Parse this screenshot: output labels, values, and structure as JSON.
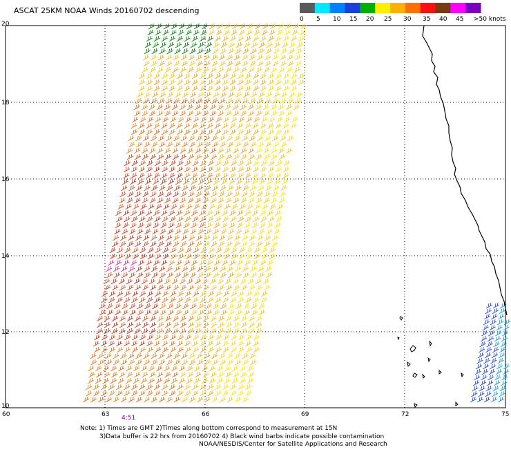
{
  "title": "ASCAT 25KM NOAA Winds 20160702 descending",
  "legend": {
    "labels": [
      "0",
      "5",
      "10",
      "15",
      "20",
      "25",
      "30",
      "35",
      "40",
      "45",
      ">50 knots"
    ],
    "colors": [
      "#5a5a5a",
      "#00e8ff",
      "#0080ff",
      "#1a40e0",
      "#00b000",
      "#ffee00",
      "#ffb000",
      "#ff7000",
      "#ff1010",
      "#7a3a10",
      "#ff00ff",
      "#7a00c0"
    ]
  },
  "axes": {
    "x_ticks": [
      "60",
      "63",
      "66",
      "69",
      "72",
      "75"
    ],
    "y_ticks": [
      "20",
      "18",
      "16",
      "14",
      "12",
      "10"
    ]
  },
  "time_label": "4:51",
  "notes": {
    "line1": "Note: 1) Times are GMT 2)Times along bottom correspond to measurement at 15N",
    "line2": "3)Data buffer is 22 hrs from 20160702 4) Black wind barbs indicate possible contamination",
    "line3": "NOAA/NESDIS/Center for Satellite Applications and Research"
  }
}
